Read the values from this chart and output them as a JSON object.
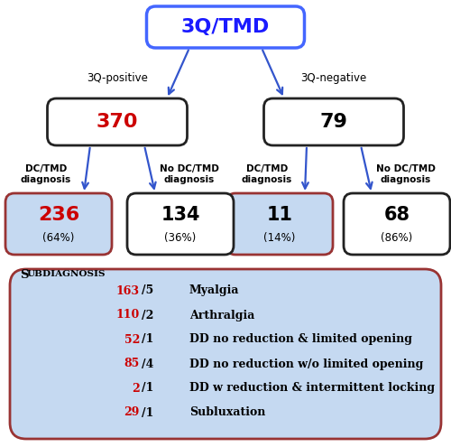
{
  "title_text": "3Q/TMD",
  "title_color": "#1a1aff",
  "title_border": "#4466ff",
  "left_label": "3Q-positive",
  "right_label": "3Q-negative",
  "left_num": "370",
  "right_num": "79",
  "left_num_color": "#cc0000",
  "ll_num": "236",
  "ll_pct": "(64%)",
  "lr_num": "134",
  "lr_pct": "(36%)",
  "rl_num": "11",
  "rl_pct": "(14%)",
  "rr_num": "68",
  "rr_pct": "(86%)",
  "ll_num_color": "#cc0000",
  "blue_bg": "#c5d9f1",
  "arrow_color": "#3355cc",
  "subdiag_entries": [
    {
      "red": "163",
      "black": "/5",
      "desc": "Myalgia"
    },
    {
      "red": "110",
      "black": "/2",
      "desc": "Arthralgia"
    },
    {
      "red": "52",
      "black": "/1",
      "desc": "DD no reduction & limited opening"
    },
    {
      "red": "85",
      "black": "/4",
      "desc": "DD no reduction w/o limited opening"
    },
    {
      "red": "2",
      "black": "/1",
      "desc": "DD w reduction & intermittent locking"
    },
    {
      "red": "29",
      "black": "/1",
      "desc": "Subluxation"
    }
  ],
  "fig_width": 5.0,
  "fig_height": 4.95
}
